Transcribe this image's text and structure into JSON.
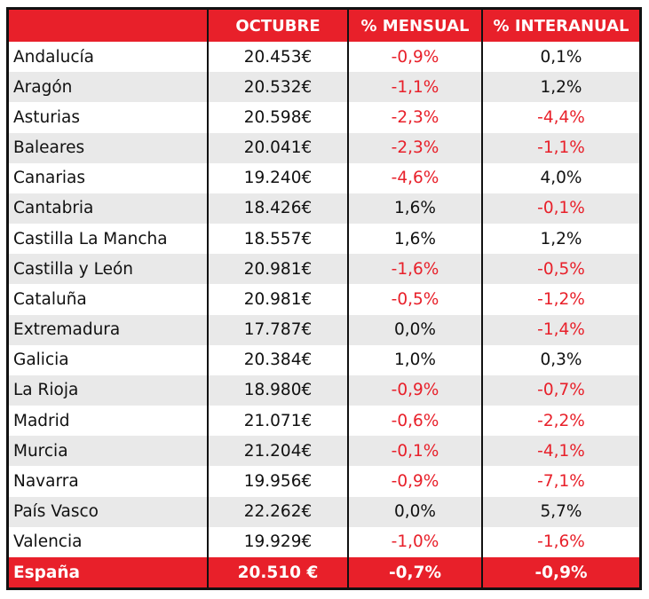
{
  "colors": {
    "accent": "#e8202a",
    "negative": "#e8202a",
    "text": "#111111",
    "stripe": "#e9e9e9"
  },
  "header": {
    "region": "",
    "octubre": "OCTUBRE",
    "mensual": "% MENSUAL",
    "interanual": "% INTERANUAL"
  },
  "rows": [
    {
      "region": "Andalucía",
      "octubre": "20.453€",
      "mensual": "-0,9%",
      "interanual": "0,1%"
    },
    {
      "region": "Aragón",
      "octubre": "20.532€",
      "mensual": "-1,1%",
      "interanual": "1,2%"
    },
    {
      "region": "Asturias",
      "octubre": "20.598€",
      "mensual": "-2,3%",
      "interanual": "-4,4%"
    },
    {
      "region": "Baleares",
      "octubre": "20.041€",
      "mensual": "-2,3%",
      "interanual": "-1,1%"
    },
    {
      "region": "Canarias",
      "octubre": "19.240€",
      "mensual": "-4,6%",
      "interanual": "4,0%"
    },
    {
      "region": "Cantabria",
      "octubre": "18.426€",
      "mensual": "1,6%",
      "interanual": "-0,1%"
    },
    {
      "region": "Castilla La Mancha",
      "octubre": "18.557€",
      "mensual": "1,6%",
      "interanual": "1,2%"
    },
    {
      "region": "Castilla y León",
      "octubre": "20.981€",
      "mensual": "-1,6%",
      "interanual": "-0,5%"
    },
    {
      "region": "Cataluña",
      "octubre": "20.981€",
      "mensual": "-0,5%",
      "interanual": "-1,2%"
    },
    {
      "region": "Extremadura",
      "octubre": "17.787€",
      "mensual": "0,0%",
      "interanual": "-1,4%"
    },
    {
      "region": "Galicia",
      "octubre": "20.384€",
      "mensual": "1,0%",
      "interanual": "0,3%"
    },
    {
      "region": "La Rioja",
      "octubre": "18.980€",
      "mensual": "-0,9%",
      "interanual": "-0,7%"
    },
    {
      "region": "Madrid",
      "octubre": "21.071€",
      "mensual": "-0,6%",
      "interanual": "-2,2%"
    },
    {
      "region": "Murcia",
      "octubre": "21.204€",
      "mensual": "-0,1%",
      "interanual": "-4,1%"
    },
    {
      "region": "Navarra",
      "octubre": "19.956€",
      "mensual": "-0,9%",
      "interanual": "-7,1%"
    },
    {
      "region": "País Vasco",
      "octubre": "22.262€",
      "mensual": "0,0%",
      "interanual": "5,7%"
    },
    {
      "region": "Valencia",
      "octubre": "19.929€",
      "mensual": "-1,0%",
      "interanual": "-1,6%"
    }
  ],
  "total": {
    "region": "España",
    "octubre": "20.510 €",
    "mensual": "-0,7%",
    "interanual": "-0,9%"
  }
}
